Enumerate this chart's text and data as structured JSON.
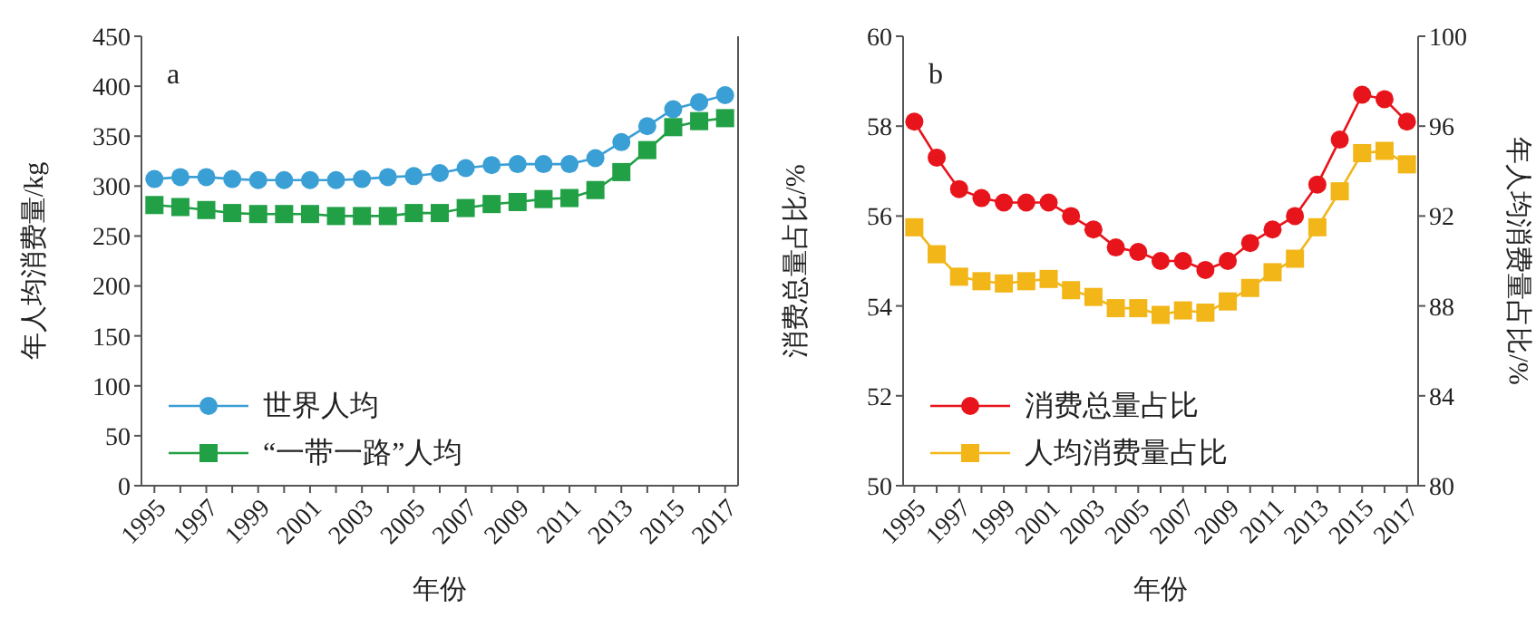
{
  "chart_data": [
    {
      "type": "line",
      "xlabel": "年份",
      "ylabel": "年人均消费量/kg",
      "annotations": [
        "a"
      ],
      "x": [
        1995,
        1996,
        1997,
        1998,
        1999,
        2000,
        2001,
        2002,
        2003,
        2004,
        2005,
        2006,
        2007,
        2008,
        2009,
        2010,
        2011,
        2012,
        2013,
        2014,
        2015,
        2016,
        2017
      ],
      "series": [
        {
          "name": "世界人均",
          "color": "#3a9fd5",
          "marker": "circle",
          "values": [
            307,
            309,
            309,
            307,
            306,
            306,
            306,
            306,
            307,
            309,
            310,
            313,
            318,
            321,
            322,
            322,
            322,
            328,
            344,
            360,
            377,
            384,
            391
          ]
        },
        {
          "name": "“一带一路”人均",
          "color": "#22a046",
          "marker": "square",
          "values": [
            281,
            279,
            276,
            273,
            272,
            272,
            272,
            270,
            270,
            270,
            273,
            273,
            278,
            282,
            284,
            287,
            288,
            296,
            314,
            336,
            359,
            365,
            368
          ]
        }
      ],
      "xlim": [
        1994.5,
        2017.5
      ],
      "xticks": [
        1995,
        {
          "value": 1996,
          "label": null
        },
        1997,
        {
          "value": 1998,
          "label": null
        },
        1999,
        {
          "value": 2000,
          "label": null
        },
        2001,
        {
          "value": 2002,
          "label": null
        },
        2003,
        {
          "value": 2004,
          "label": null
        },
        2005,
        {
          "value": 2006,
          "label": null
        },
        2007,
        {
          "value": 2008,
          "label": null
        },
        2009,
        {
          "value": 2010,
          "label": null
        },
        2011,
        {
          "value": 2012,
          "label": null
        },
        2013,
        {
          "value": 2014,
          "label": null
        },
        2015,
        {
          "value": 2016,
          "label": null
        },
        2017
      ],
      "ylim": [
        0,
        450
      ],
      "yticks": [
        0,
        50,
        100,
        150,
        200,
        250,
        300,
        350,
        400,
        450
      ],
      "grid": false,
      "legend": "bottom left",
      "line_style": "solid"
    },
    {
      "type": "line",
      "xlabel": "年份",
      "ylabel": "消费总量占比/%",
      "y2label": "年人均消费量占比/%",
      "annotations": [
        "b"
      ],
      "x": [
        1995,
        1996,
        1997,
        1998,
        1999,
        2000,
        2001,
        2002,
        2003,
        2004,
        2005,
        2006,
        2007,
        2008,
        2009,
        2010,
        2011,
        2012,
        2013,
        2014,
        2015,
        2016,
        2017
      ],
      "series": [
        {
          "name": "消费总量占比",
          "color": "#e8141b",
          "marker": "circle",
          "values": [
            58.1,
            57.3,
            56.6,
            56.4,
            56.3,
            56.3,
            56.3,
            56.0,
            55.7,
            55.3,
            55.2,
            55.0,
            55.0,
            54.8,
            55.0,
            55.4,
            55.7,
            56.0,
            56.7,
            57.7,
            58.7,
            58.6,
            58.1
          ]
        },
        {
          "name": "人均消费量占比",
          "color": "#f2b619",
          "marker": "square",
          "axis": "y2",
          "values": [
            91.5,
            90.3,
            89.3,
            89.1,
            89.0,
            89.1,
            89.2,
            88.7,
            88.4,
            87.9,
            87.9,
            87.6,
            87.8,
            87.7,
            88.2,
            88.8,
            89.5,
            90.1,
            91.5,
            93.1,
            94.8,
            94.9,
            94.3
          ]
        }
      ],
      "xlim": [
        1994.5,
        2017.5
      ],
      "xticks": [
        1995,
        {
          "value": 1996,
          "label": null
        },
        1997,
        {
          "value": 1998,
          "label": null
        },
        1999,
        {
          "value": 2000,
          "label": null
        },
        2001,
        {
          "value": 2002,
          "label": null
        },
        2003,
        {
          "value": 2004,
          "label": null
        },
        2005,
        {
          "value": 2006,
          "label": null
        },
        2007,
        {
          "value": 2008,
          "label": null
        },
        2009,
        {
          "value": 2010,
          "label": null
        },
        2011,
        {
          "value": 2012,
          "label": null
        },
        2013,
        {
          "value": 2014,
          "label": null
        },
        2015,
        {
          "value": 2016,
          "label": null
        },
        2017
      ],
      "ylim": [
        50,
        60
      ],
      "yticks": [
        50,
        52,
        54,
        56,
        58,
        60
      ],
      "y2lim": [
        80,
        100
      ],
      "y2ticks": [
        80,
        84,
        88,
        92,
        96,
        100
      ],
      "grid": false,
      "legend": "bottom left",
      "line_style": "solid"
    }
  ]
}
